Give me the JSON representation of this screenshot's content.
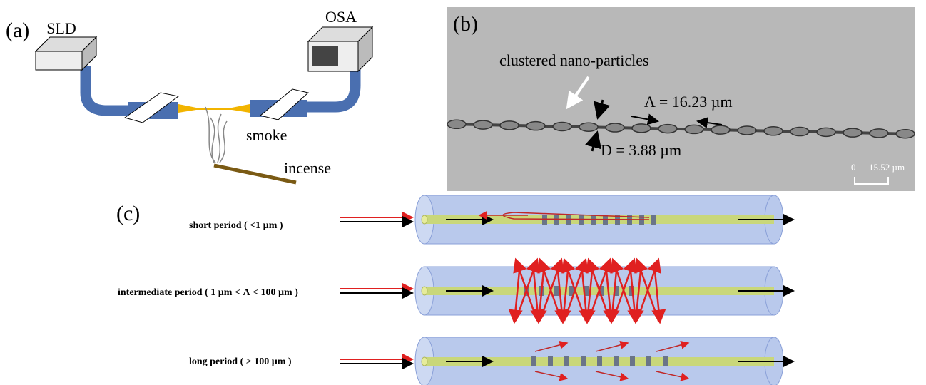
{
  "panel_a": {
    "label": "(a)",
    "source": "SLD",
    "analyzer": "OSA",
    "smoke": "smoke",
    "incense": "incense"
  },
  "panel_b": {
    "label": "(b)",
    "annotation": "clustered nano-particles",
    "period": "Λ = 16.23 µm",
    "diameter": "D = 3.88 µm",
    "scale_zero": "0",
    "scale_length": "15.52 µm"
  },
  "panel_c": {
    "label": "(c)",
    "rows": [
      "short period ( <1 µm )",
      "intermediate period ( 1 µm < Λ < 100 µm )",
      "long period ( > 100 µm )"
    ]
  }
}
